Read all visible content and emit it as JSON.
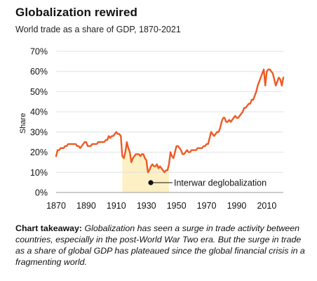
{
  "header": {
    "title": "Globalization rewired",
    "subtitle": "World trade as a share of GDP, 1870-2021"
  },
  "takeaway": {
    "lead": "Chart takeaway:",
    "body": " Globalization has seen a surge in trade activity between countries, especially in the post-World War Two era. But the surge in trade as a share of global GDP has plateaued since the global financial crisis in a fragmenting world."
  },
  "chart_data": {
    "type": "line",
    "title": "Globalization rewired",
    "subtitle": "World trade as a share of GDP, 1870-2021",
    "ylabel": "Share",
    "xlabel": "",
    "xlim": [
      1870,
      2021
    ],
    "ylim": [
      0,
      70
    ],
    "x_ticks": [
      "1870",
      "1890",
      "1910",
      "1930",
      "1950",
      "1970",
      "1990",
      "2010"
    ],
    "y_ticks": [
      "0%",
      "10%",
      "20%",
      "30%",
      "40%",
      "50%",
      "60%",
      "70%"
    ],
    "grid": true,
    "line_color": "#ee5a24",
    "shade_color": "#fdf0c4",
    "annotation": {
      "text": "Interwar deglobalization",
      "x_range": [
        1914,
        1945
      ]
    },
    "series": [
      {
        "values": [
          [
            1870,
            18
          ],
          [
            1871,
            21
          ],
          [
            1872,
            21
          ],
          [
            1873,
            22
          ],
          [
            1874,
            22
          ],
          [
            1875,
            22
          ],
          [
            1876,
            23
          ],
          [
            1877,
            23
          ],
          [
            1878,
            24
          ],
          [
            1879,
            24
          ],
          [
            1880,
            24
          ],
          [
            1881,
            24
          ],
          [
            1882,
            24
          ],
          [
            1883,
            24
          ],
          [
            1884,
            23
          ],
          [
            1885,
            23
          ],
          [
            1886,
            22
          ],
          [
            1887,
            23
          ],
          [
            1888,
            24
          ],
          [
            1889,
            25
          ],
          [
            1890,
            25
          ],
          [
            1891,
            23
          ],
          [
            1892,
            23
          ],
          [
            1893,
            23
          ],
          [
            1894,
            24
          ],
          [
            1895,
            24
          ],
          [
            1896,
            24
          ],
          [
            1897,
            24
          ],
          [
            1898,
            25
          ],
          [
            1899,
            25
          ],
          [
            1900,
            25
          ],
          [
            1901,
            25
          ],
          [
            1902,
            25
          ],
          [
            1903,
            26
          ],
          [
            1904,
            26
          ],
          [
            1905,
            28
          ],
          [
            1906,
            27
          ],
          [
            1907,
            28
          ],
          [
            1908,
            28
          ],
          [
            1909,
            29
          ],
          [
            1910,
            30
          ],
          [
            1911,
            29
          ],
          [
            1912,
            29
          ],
          [
            1913,
            28
          ],
          [
            1914,
            18
          ],
          [
            1915,
            17
          ],
          [
            1916,
            20
          ],
          [
            1917,
            25
          ],
          [
            1918,
            22
          ],
          [
            1919,
            20
          ],
          [
            1920,
            15
          ],
          [
            1921,
            17
          ],
          [
            1922,
            18
          ],
          [
            1923,
            19
          ],
          [
            1924,
            19
          ],
          [
            1925,
            19
          ],
          [
            1926,
            18
          ],
          [
            1927,
            19
          ],
          [
            1928,
            19
          ],
          [
            1929,
            17
          ],
          [
            1930,
            16
          ],
          [
            1931,
            10
          ],
          [
            1932,
            11
          ],
          [
            1933,
            13
          ],
          [
            1934,
            14
          ],
          [
            1935,
            13
          ],
          [
            1936,
            13
          ],
          [
            1937,
            14
          ],
          [
            1938,
            12
          ],
          [
            1939,
            13
          ],
          [
            1940,
            12
          ],
          [
            1941,
            11
          ],
          [
            1942,
            10
          ],
          [
            1943,
            11
          ],
          [
            1944,
            11
          ],
          [
            1945,
            14
          ],
          [
            1946,
            20
          ],
          [
            1947,
            18
          ],
          [
            1948,
            17
          ],
          [
            1949,
            20
          ],
          [
            1950,
            23
          ],
          [
            1951,
            23
          ],
          [
            1952,
            22
          ],
          [
            1953,
            21
          ],
          [
            1954,
            19
          ],
          [
            1955,
            19
          ],
          [
            1956,
            20
          ],
          [
            1957,
            21
          ],
          [
            1958,
            20
          ],
          [
            1959,
            20
          ],
          [
            1960,
            21
          ],
          [
            1961,
            21
          ],
          [
            1962,
            21
          ],
          [
            1963,
            21
          ],
          [
            1964,
            22
          ],
          [
            1965,
            22
          ],
          [
            1966,
            22
          ],
          [
            1967,
            22
          ],
          [
            1968,
            23
          ],
          [
            1969,
            23
          ],
          [
            1970,
            24
          ],
          [
            1971,
            24
          ],
          [
            1972,
            27
          ],
          [
            1973,
            30
          ],
          [
            1974,
            29
          ],
          [
            1975,
            28
          ],
          [
            1976,
            29
          ],
          [
            1977,
            30
          ],
          [
            1978,
            30
          ],
          [
            1979,
            32
          ],
          [
            1980,
            35
          ],
          [
            1981,
            37
          ],
          [
            1982,
            37
          ],
          [
            1983,
            35
          ],
          [
            1984,
            35
          ],
          [
            1985,
            36
          ],
          [
            1986,
            35
          ],
          [
            1987,
            36
          ],
          [
            1988,
            37
          ],
          [
            1989,
            38
          ],
          [
            1990,
            37
          ],
          [
            1991,
            37
          ],
          [
            1992,
            38
          ],
          [
            1993,
            39
          ],
          [
            1994,
            40
          ],
          [
            1995,
            42
          ],
          [
            1996,
            42
          ],
          [
            1997,
            43
          ],
          [
            1998,
            44
          ],
          [
            1999,
            44
          ],
          [
            2000,
            46
          ],
          [
            2001,
            46
          ],
          [
            2002,
            48
          ],
          [
            2003,
            50
          ],
          [
            2004,
            53
          ],
          [
            2005,
            55
          ],
          [
            2006,
            57
          ],
          [
            2007,
            59
          ],
          [
            2008,
            61
          ],
          [
            2009,
            53
          ],
          [
            2010,
            60
          ],
          [
            2011,
            61
          ],
          [
            2012,
            61
          ],
          [
            2013,
            60
          ],
          [
            2014,
            59
          ],
          [
            2015,
            56
          ],
          [
            2016,
            53
          ],
          [
            2017,
            55
          ],
          [
            2018,
            57
          ],
          [
            2019,
            56
          ],
          [
            2020,
            53
          ],
          [
            2021,
            57
          ]
        ]
      }
    ]
  }
}
